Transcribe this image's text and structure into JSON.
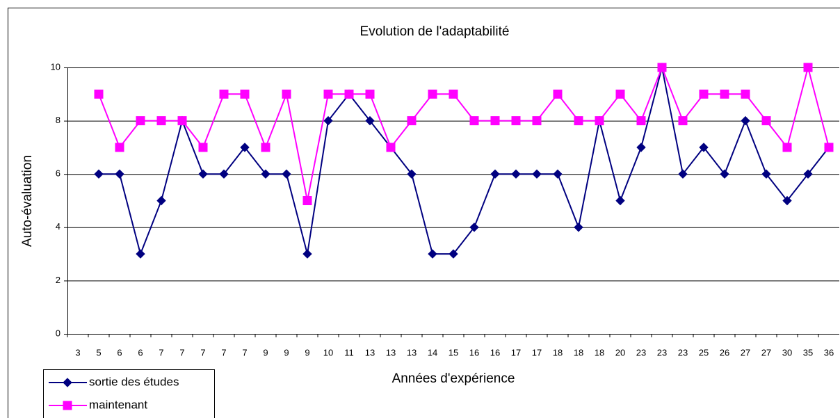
{
  "chart_data": {
    "type": "line",
    "title": "Evolution de l'adaptabilité",
    "x_label": "Années d'expérience",
    "y_label": "Auto-évaluation",
    "categories": [
      "3",
      "5",
      "6",
      "6",
      "7",
      "7",
      "7",
      "7",
      "7",
      "9",
      "9",
      "9",
      "10",
      "11",
      "13",
      "13",
      "13",
      "14",
      "15",
      "16",
      "16",
      "17",
      "17",
      "18",
      "18",
      "18",
      "20",
      "23",
      "23",
      "23",
      "25",
      "26",
      "27",
      "27",
      "30",
      "35",
      "36"
    ],
    "series": [
      {
        "name": "sortie des études",
        "color": "#000080",
        "marker": "diamond",
        "values": [
          null,
          6,
          6,
          3,
          5,
          8,
          6,
          6,
          7,
          6,
          6,
          3,
          8,
          9,
          8,
          7,
          6,
          3,
          3,
          4,
          6,
          6,
          6,
          6,
          4,
          8,
          5,
          7,
          10,
          6,
          7,
          6,
          8,
          6,
          5,
          6,
          7
        ]
      },
      {
        "name": "maintenant",
        "color": "#ff00ff",
        "marker": "square",
        "values": [
          null,
          9,
          7,
          8,
          8,
          8,
          7,
          9,
          9,
          7,
          9,
          5,
          9,
          9,
          9,
          7,
          8,
          9,
          9,
          8,
          8,
          8,
          8,
          9,
          8,
          8,
          9,
          8,
          10,
          8,
          9,
          9,
          9,
          8,
          7,
          10,
          7
        ]
      }
    ],
    "ylim": [
      0,
      10
    ],
    "yticks": [
      0,
      2,
      4,
      6,
      8,
      10
    ],
    "grid": true,
    "legend": "bottom-left"
  }
}
